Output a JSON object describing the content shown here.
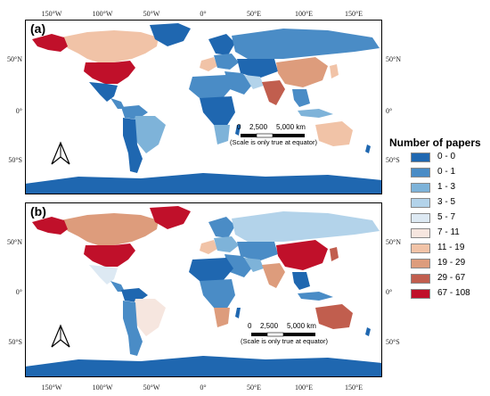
{
  "panels": [
    {
      "label": "(a)"
    },
    {
      "label": "(b)"
    }
  ],
  "longitude_ticks": [
    "150°W",
    "100°W",
    "50°W",
    "0°",
    "50°E",
    "100°E",
    "150°E"
  ],
  "latitude_ticks": [
    "50°N",
    "0°",
    "50°S"
  ],
  "scale_bar": {
    "labels": [
      "0",
      "2,500",
      "5,000 km"
    ],
    "note": "(Scale is only true at equator)"
  },
  "legend": {
    "title": "Number of papers",
    "classes": [
      {
        "label": "0 - 0",
        "color": "#1f67b0"
      },
      {
        "label": "0 - 1",
        "color": "#4a8cc6"
      },
      {
        "label": "1 - 3",
        "color": "#7eb3d9"
      },
      {
        "label": "3 - 5",
        "color": "#b3d3ea"
      },
      {
        "label": "5 - 7",
        "color": "#dde9f3"
      },
      {
        "label": "7 - 11",
        "color": "#f6e6df"
      },
      {
        "label": "11 - 19",
        "color": "#f1c3a7"
      },
      {
        "label": "19 - 29",
        "color": "#dd9c7c"
      },
      {
        "label": "29 - 67",
        "color": "#c15e4e"
      },
      {
        "label": "67 - 108",
        "color": "#c0102a"
      }
    ]
  },
  "colors": {
    "ocean": "#ffffff",
    "no_data": "#1f67b0"
  }
}
